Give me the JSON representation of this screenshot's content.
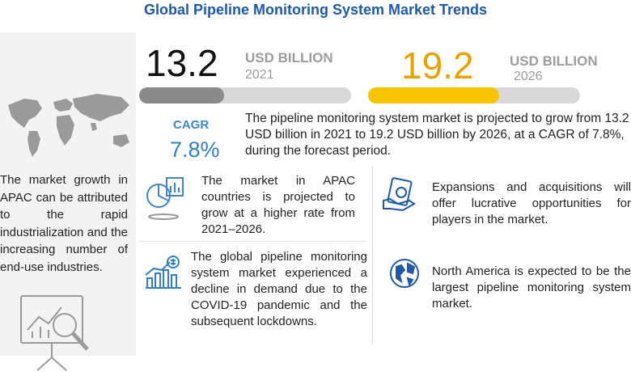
{
  "title": "Global Pipeline Monitoring System Market Trends",
  "left_panel": {
    "growth_text": "The market growth in APAC can be attributed to the rapid industrialization and the increasing number of end-use industries."
  },
  "stat_2021": {
    "value": "13.2",
    "unit": "USD BILLION",
    "year": "2021",
    "bar_fill_fraction": 0.4
  },
  "stat_2026": {
    "value": "19.2",
    "unit": "USD BILLION",
    "year": "2026",
    "bar_fill_fraction": 0.62
  },
  "cagr": {
    "label": "CAGR",
    "value": "7.8%",
    "description": "The pipeline monitoring system market is projected to grow from 13.2 USD billion in 2021 to 19.2 USD billion by 2026, at a CAGR of 7.8%, during the forecast period."
  },
  "highlights": {
    "apac": "The market in APAC countries is projected to grow at a higher rate from 2021–2026.",
    "covid": "The global pipeline monitoring system market experienced a decline in demand due to the COVID-19 pandemic and the subsequent lockdowns.",
    "expansions": "Expansions and acquisitions will offer lucrative opportunities for players in the market.",
    "north_america": "North America is expected to be the largest pipeline monitoring system market."
  },
  "colors": {
    "title": "#1f5aa6",
    "accent_yellow": "#f6c400",
    "accent_blue": "#2f7ec6",
    "bar_gray": "#8a8a8a"
  },
  "icons": [
    "world-map-icon",
    "analytics-presentation-icon",
    "growth-chart-icon",
    "dollar-growth-icon",
    "money-hand-icon",
    "globe-icon"
  ]
}
